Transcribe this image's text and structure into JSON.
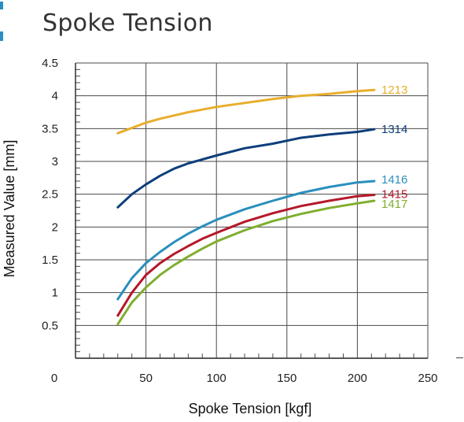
{
  "title": "Spoke Tension",
  "colors": {
    "accent": "#2a8ec4",
    "1213": "#e8ae2c",
    "1314": "#0d3f7a",
    "1416": "#2a8fbd",
    "1415": "#b5182a",
    "1417": "#7fae2e"
  },
  "chart_data": {
    "type": "line",
    "title": "Spoke Tension",
    "xlabel": "Spoke Tension [kgf]",
    "ylabel": "Measured Value [mm]",
    "xlim": [
      0,
      250
    ],
    "ylim": [
      0,
      4.5
    ],
    "x_ticks": [
      0,
      50,
      100,
      150,
      200,
      250
    ],
    "y_ticks": [
      0.5,
      1,
      1.5,
      2,
      2.5,
      3,
      3.5,
      4,
      4.5
    ],
    "grid": true,
    "legend": "inline labels at right end of each line",
    "series": [
      {
        "name": "1213",
        "color": "#e8ae2c",
        "x": [
          30,
          40,
          50,
          60,
          70,
          80,
          90,
          100,
          120,
          140,
          160,
          180,
          200,
          212
        ],
        "y": [
          3.43,
          3.51,
          3.59,
          3.65,
          3.7,
          3.75,
          3.79,
          3.83,
          3.89,
          3.95,
          4.0,
          4.03,
          4.07,
          4.09
        ]
      },
      {
        "name": "1314",
        "color": "#0d3f7a",
        "x": [
          30,
          40,
          50,
          60,
          70,
          80,
          90,
          100,
          120,
          140,
          160,
          180,
          200,
          212
        ],
        "y": [
          2.3,
          2.5,
          2.65,
          2.78,
          2.89,
          2.97,
          3.03,
          3.09,
          3.2,
          3.27,
          3.36,
          3.41,
          3.45,
          3.49
        ]
      },
      {
        "name": "1416",
        "color": "#2a8fbd",
        "x": [
          30,
          40,
          50,
          60,
          70,
          80,
          90,
          100,
          120,
          140,
          160,
          180,
          200,
          212
        ],
        "y": [
          0.9,
          1.22,
          1.45,
          1.62,
          1.77,
          1.9,
          2.01,
          2.11,
          2.27,
          2.4,
          2.52,
          2.61,
          2.68,
          2.7
        ]
      },
      {
        "name": "1415",
        "color": "#b5182a",
        "x": [
          30,
          40,
          50,
          60,
          70,
          80,
          90,
          100,
          120,
          140,
          160,
          180,
          200,
          212
        ],
        "y": [
          0.65,
          1.0,
          1.27,
          1.45,
          1.59,
          1.71,
          1.82,
          1.91,
          2.08,
          2.21,
          2.32,
          2.4,
          2.47,
          2.49
        ]
      },
      {
        "name": "1417",
        "color": "#7fae2e",
        "x": [
          30,
          40,
          50,
          60,
          70,
          80,
          90,
          100,
          120,
          140,
          160,
          180,
          200,
          212
        ],
        "y": [
          0.52,
          0.85,
          1.08,
          1.27,
          1.42,
          1.55,
          1.67,
          1.78,
          1.95,
          2.09,
          2.2,
          2.29,
          2.36,
          2.4
        ]
      }
    ]
  }
}
